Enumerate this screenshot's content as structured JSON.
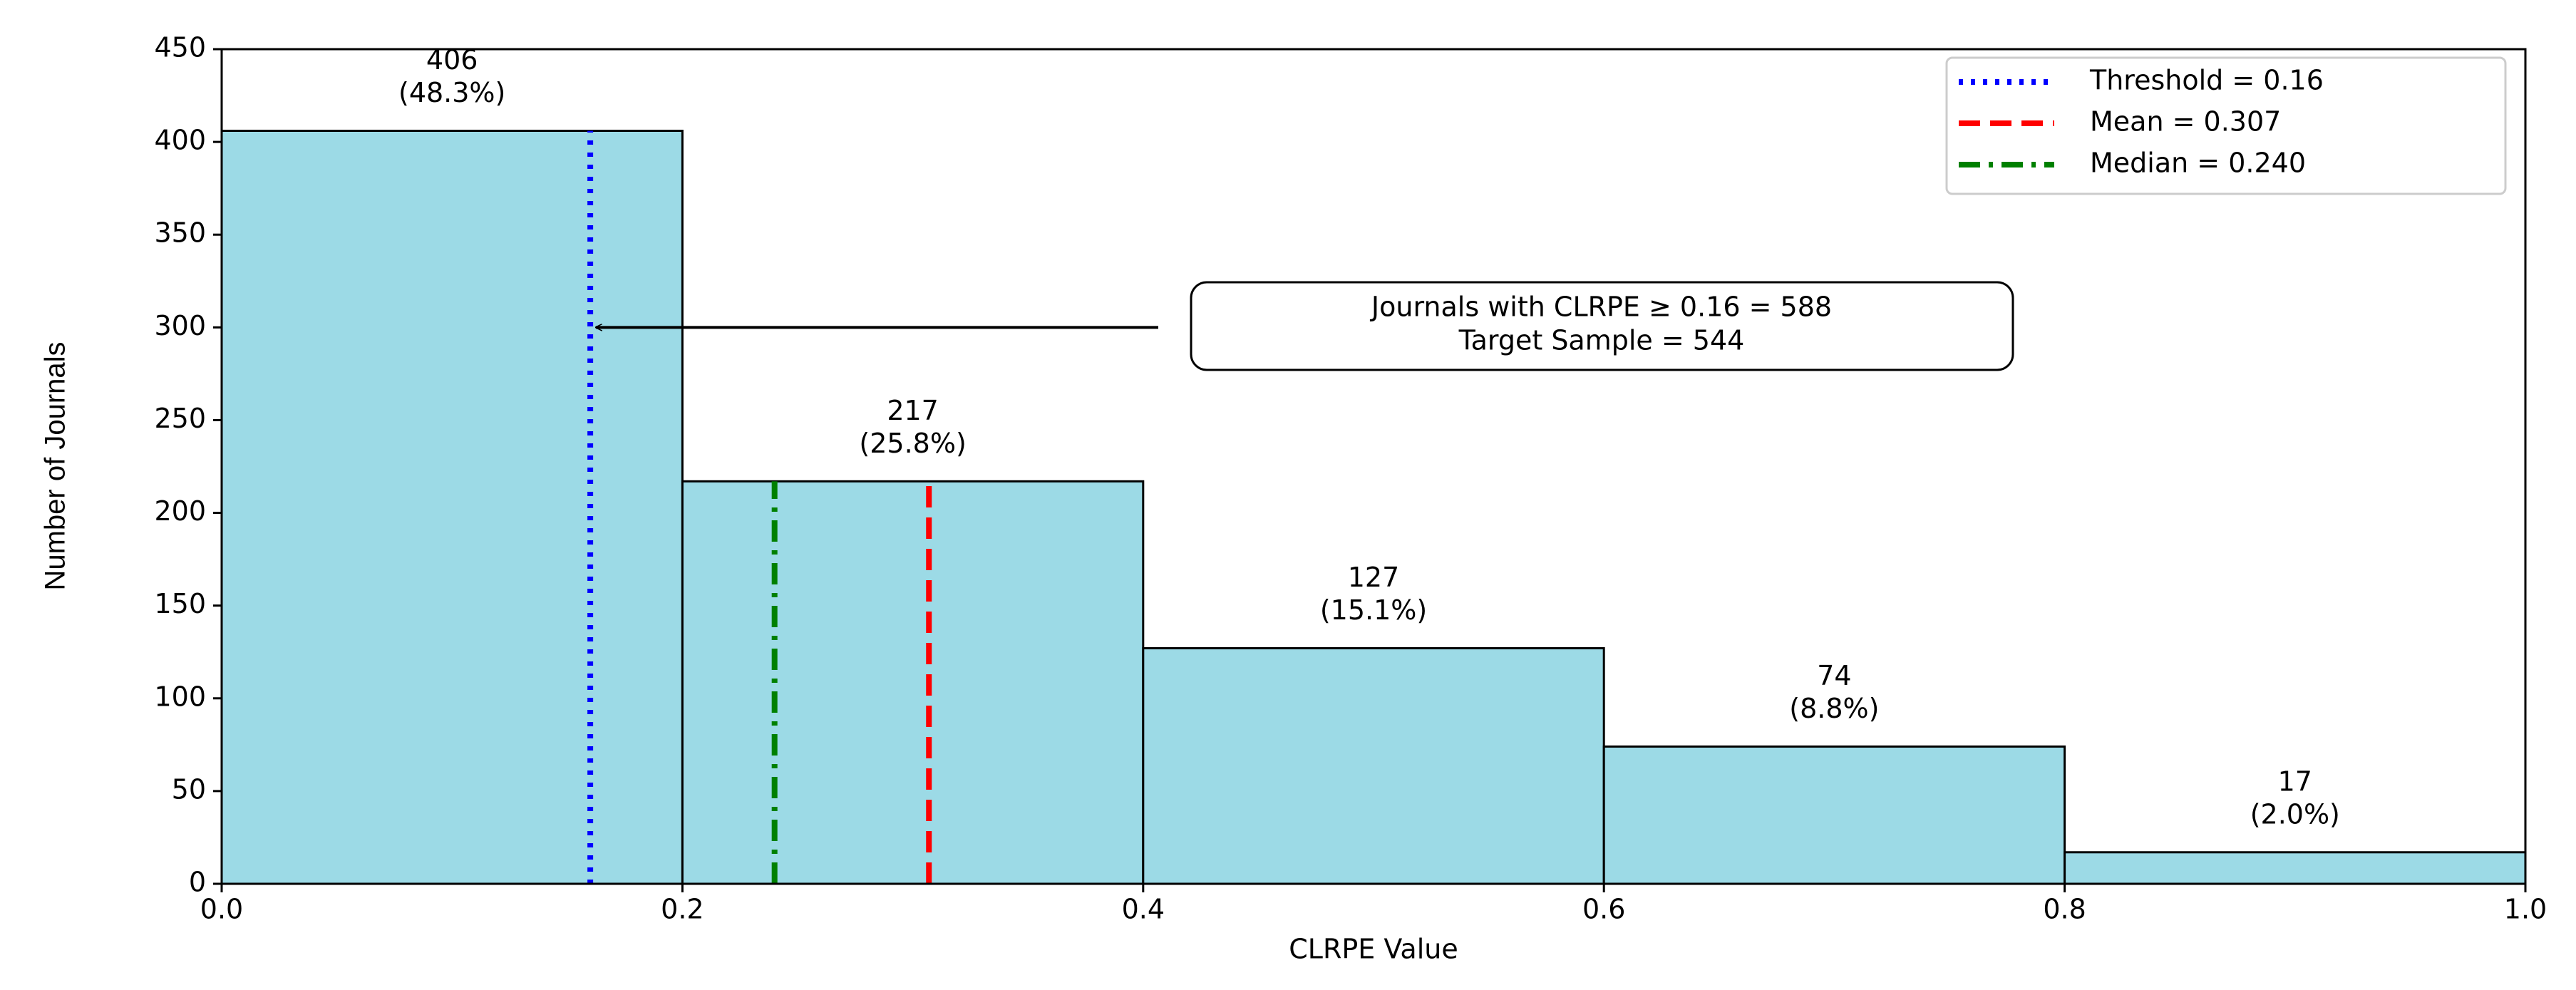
{
  "chart_data": {
    "type": "histogram",
    "x_label": "CLRPE Value",
    "y_label": "Number of Journals",
    "bins": [
      0,
      0.2,
      0.4,
      0.6,
      0.8,
      1
    ],
    "values": [
      406,
      217,
      127,
      74,
      17
    ],
    "percentages": [
      48.3,
      25.8,
      15.1,
      8.8,
      2.0
    ],
    "percentage_labels": [
      "(48.3%)",
      "(25.8%)",
      "(15.1%)",
      "(8.8%)",
      "(2.0%)"
    ],
    "color": "#9cdae6",
    "edgecolor": "#000000",
    "xlim": [
      0,
      1
    ],
    "ylim": [
      0,
      450
    ],
    "xticks": [
      {
        "value": 0,
        "label": "0.0"
      },
      0.2,
      0.4,
      0.6,
      0.8,
      {
        "value": 1,
        "label": "1.0"
      }
    ],
    "yticks": [
      0,
      50,
      100,
      150,
      200,
      250,
      300,
      350,
      400,
      450
    ],
    "vlines": [
      {
        "name": "Threshold = 0.16",
        "value": 0.16,
        "color": "#0000ff",
        "style": "dotted"
      },
      {
        "name": "Mean = 0.307",
        "value": 0.307,
        "color": "#ff0000",
        "style": "dashed"
      },
      {
        "name": "Median = 0.240",
        "value": 0.24,
        "color": "#008000",
        "style": "dashdot"
      }
    ],
    "legend": "upper right",
    "annotation": {
      "lines": [
        "Journals with CLRPE ≥ 0.16 = 588",
        "Target Sample = 544"
      ],
      "xy": [
        0.16,
        300
      ]
    }
  }
}
